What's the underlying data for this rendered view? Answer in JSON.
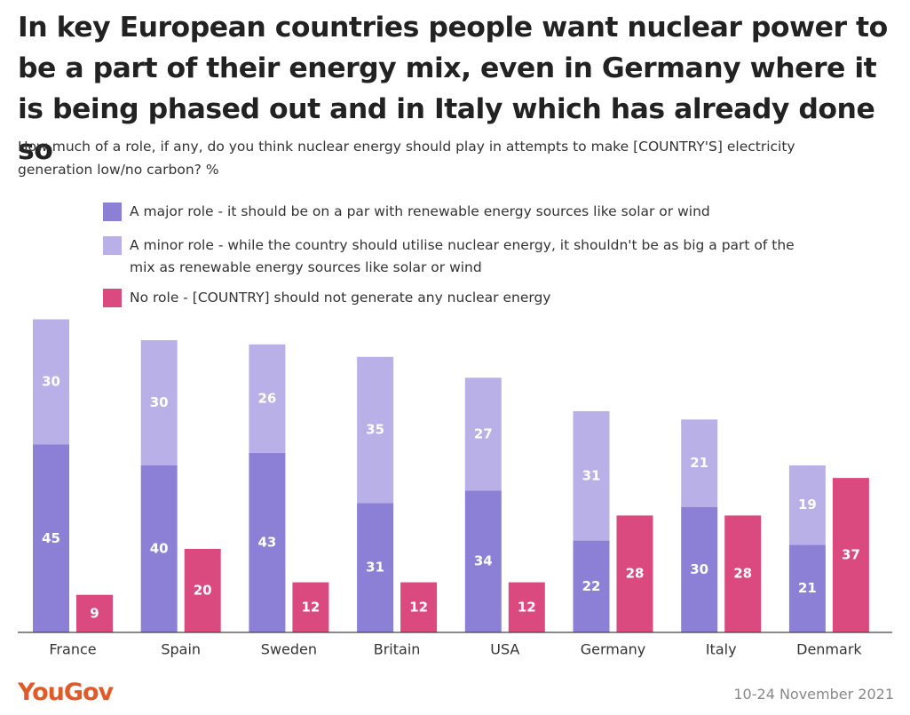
{
  "title": "In key European countries people want nuclear power to be a part of their energy mix, even in Germany where it is being phased out and in Italy which has already done so",
  "subtitle": "How much of a role, if any, do you think nuclear energy should play in attempts to make [COUNTRY'S] electricity generation low/no carbon? %",
  "colors": {
    "major": "#8b7fd6",
    "minor": "#b8b0e6",
    "none": "#db4a7e"
  },
  "legend": [
    {
      "key": "major",
      "label": "A major role - it should be on a par with renewable energy sources like solar or wind"
    },
    {
      "key": "minor",
      "label": "A minor role - while the country should utilise nuclear energy, it shouldn't be as big a part of the mix as renewable energy sources like solar or wind"
    },
    {
      "key": "none",
      "label": "No role - [COUNTRY] should not generate any nuclear energy"
    }
  ],
  "chart_data": {
    "type": "bar",
    "stacked_groups": true,
    "categories": [
      "France",
      "Spain",
      "Sweden",
      "Britain",
      "USA",
      "Germany",
      "Italy",
      "Denmark"
    ],
    "series": [
      {
        "name": "A major role",
        "key": "major",
        "values": [
          45,
          40,
          43,
          31,
          34,
          22,
          30,
          21
        ]
      },
      {
        "name": "A minor role",
        "key": "minor",
        "values": [
          30,
          30,
          26,
          35,
          27,
          31,
          21,
          19
        ]
      },
      {
        "name": "No role",
        "key": "none",
        "values": [
          9,
          20,
          12,
          12,
          12,
          28,
          28,
          37
        ]
      }
    ],
    "ylim": [
      0,
      75
    ],
    "xlabel": "",
    "ylabel": ""
  },
  "footer": {
    "logo": "YouGov",
    "date": "10-24 November 2021"
  }
}
